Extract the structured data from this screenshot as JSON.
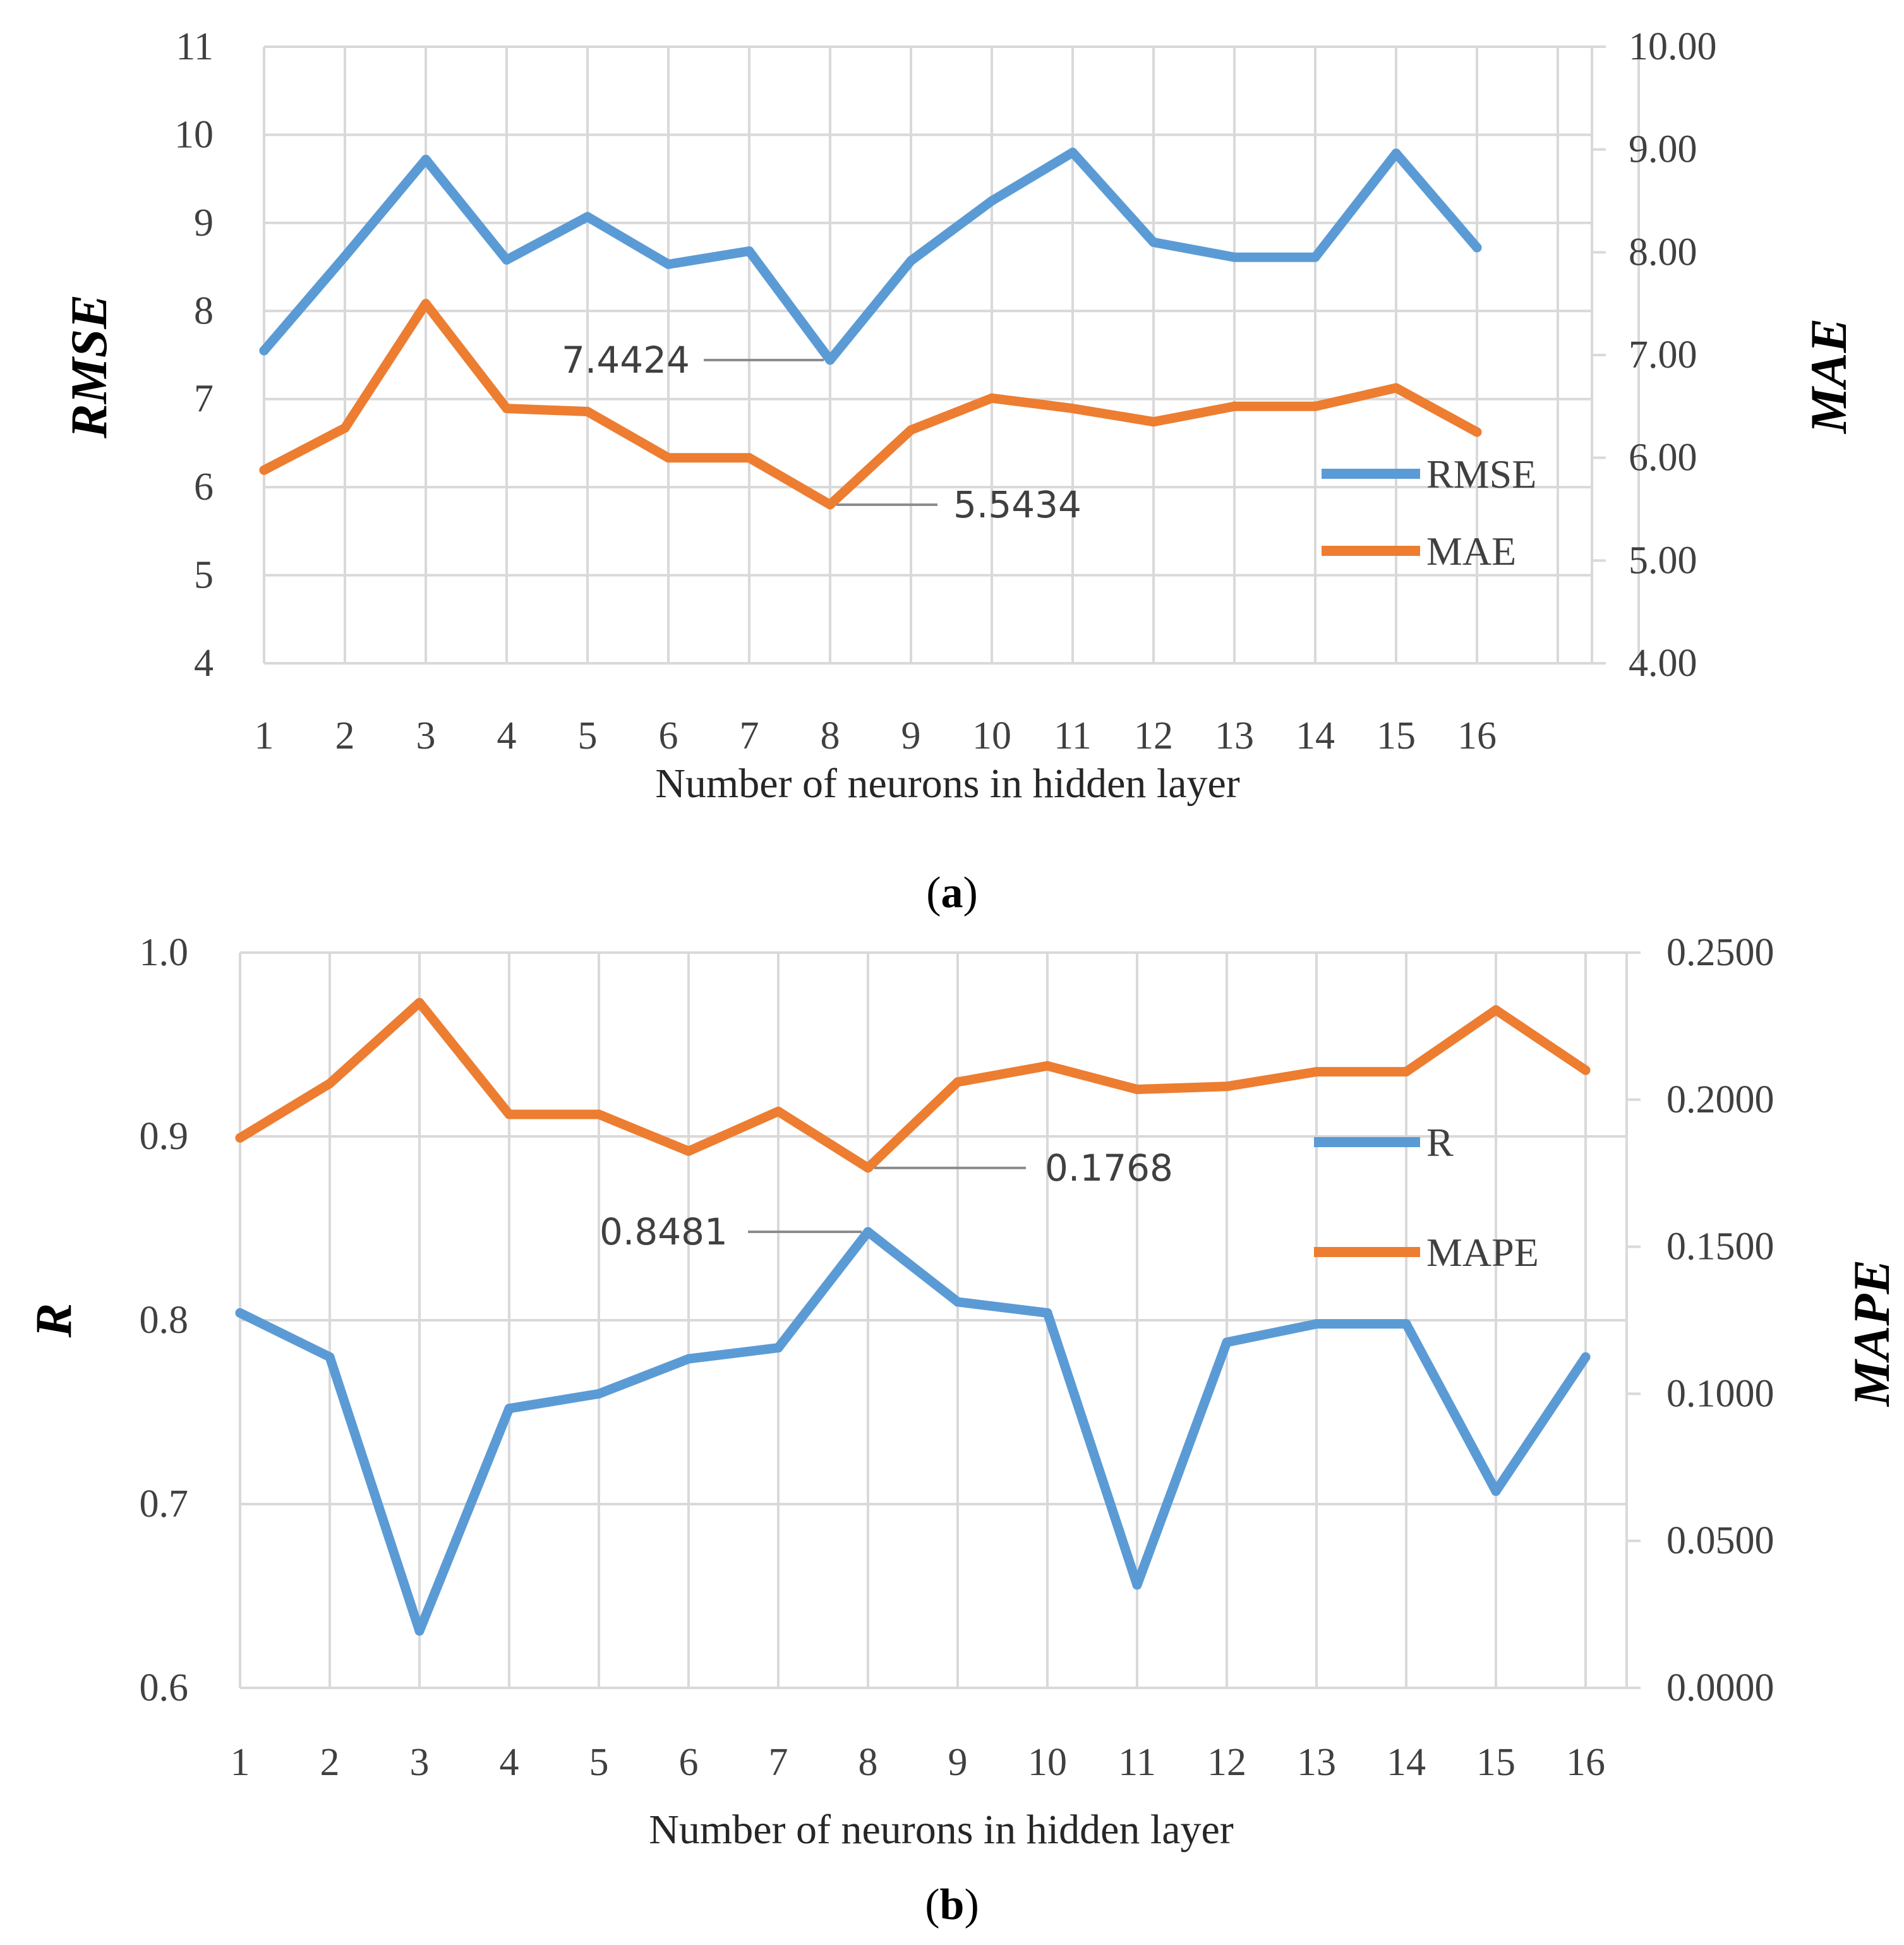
{
  "colors": {
    "rmse": "#5b9bd5",
    "mae": "#ed7d31",
    "grid": "#d9d9d9",
    "text": "#404040"
  },
  "chart_data": [
    {
      "id": "a",
      "type": "line",
      "caption": {
        "open": "(",
        "letter": "a",
        "close": ")"
      },
      "xlabel": "Number of neurons in hidden layer",
      "x": [
        1,
        2,
        3,
        4,
        5,
        6,
        7,
        8,
        9,
        10,
        11,
        12,
        13,
        14,
        15,
        16
      ],
      "x_slots": 17,
      "y_left": {
        "label": "RMSE",
        "range": [
          4,
          11
        ],
        "ticks": [
          "4",
          "5",
          "6",
          "7",
          "8",
          "9",
          "10",
          "11"
        ]
      },
      "y_right": {
        "label": "MAE",
        "range": [
          4,
          10
        ],
        "ticks": [
          "4.00",
          "5.00",
          "6.00",
          "7.00",
          "8.00",
          "9.00",
          "10.00"
        ]
      },
      "series": [
        {
          "name": "RMSE",
          "axis": "left",
          "color": "#5b9bd5",
          "values": [
            7.55,
            8.62,
            9.72,
            8.58,
            9.07,
            8.53,
            8.68,
            7.4424,
            8.57,
            9.25,
            9.8,
            8.78,
            8.61,
            8.61,
            9.79,
            8.72
          ]
        },
        {
          "name": "MAE",
          "axis": "right",
          "color": "#ed7d31",
          "values": [
            5.88,
            6.29,
            7.5,
            6.48,
            6.45,
            6.0,
            6.0,
            5.5434,
            6.27,
            6.58,
            6.48,
            6.35,
            6.5,
            6.5,
            6.68,
            6.25
          ]
        }
      ],
      "annotations": [
        {
          "series": "RMSE",
          "x": 8,
          "text": "7.4424"
        },
        {
          "series": "MAE",
          "x": 8,
          "text": "5.5434"
        }
      ],
      "legend": [
        "RMSE",
        "MAE"
      ]
    },
    {
      "id": "b",
      "type": "line",
      "caption": {
        "open": "(",
        "letter": "b",
        "close": ")"
      },
      "xlabel": "Number of neurons in hidden layer",
      "x": [
        1,
        2,
        3,
        4,
        5,
        6,
        7,
        8,
        9,
        10,
        11,
        12,
        13,
        14,
        15,
        16
      ],
      "x_slots": 15,
      "y_left": {
        "label": "R",
        "range": [
          0.6,
          1.0
        ],
        "ticks": [
          "0.6",
          "0.7",
          "0.8",
          "0.9",
          "1.0"
        ]
      },
      "y_right": {
        "label": "MAPE",
        "range": [
          0,
          0.25
        ],
        "ticks": [
          "0.0000",
          "0.0500",
          "0.1000",
          "0.1500",
          "0.2000",
          "0.2500"
        ]
      },
      "series": [
        {
          "name": "R",
          "axis": "left",
          "color": "#5b9bd5",
          "values": [
            0.804,
            0.78,
            0.631,
            0.752,
            0.76,
            0.779,
            0.785,
            0.8481,
            0.81,
            0.804,
            0.656,
            0.788,
            0.798,
            0.798,
            0.707,
            0.78
          ]
        },
        {
          "name": "MAPE",
          "axis": "right",
          "color": "#ed7d31",
          "values": [
            0.187,
            0.2055,
            0.233,
            0.195,
            0.195,
            0.1825,
            0.196,
            0.1768,
            0.206,
            0.2115,
            0.2035,
            0.2045,
            0.2095,
            0.2095,
            0.2305,
            0.21
          ]
        }
      ],
      "annotations": [
        {
          "series": "R",
          "x": 8,
          "text": "0.8481"
        },
        {
          "series": "MAPE",
          "x": 8,
          "text": "0.1768"
        }
      ],
      "legend": [
        "R",
        "MAPE"
      ]
    }
  ]
}
